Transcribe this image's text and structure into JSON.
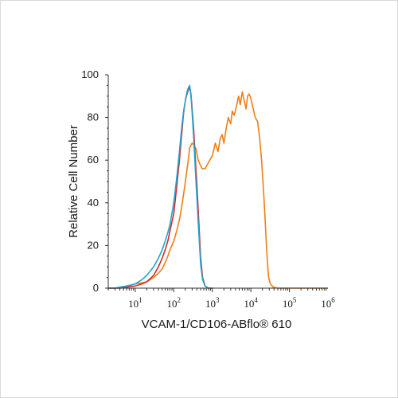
{
  "chart_data": {
    "type": "line",
    "title": "",
    "xlabel": "VCAM-1/CD106-ABflo® 610",
    "ylabel": "Relative Cell Number",
    "x_scale": "log",
    "xlim": [
      2,
      1000000
    ],
    "ylim": [
      0,
      100
    ],
    "y_ticks": [
      0,
      20,
      40,
      60,
      80,
      100
    ],
    "x_ticks": [
      {
        "value": 10,
        "base": "10",
        "exp": "1"
      },
      {
        "value": 100,
        "base": "10",
        "exp": "2"
      },
      {
        "value": 1000,
        "base": "10",
        "exp": "3"
      },
      {
        "value": 10000,
        "base": "10",
        "exp": "4"
      },
      {
        "value": 100000,
        "base": "10",
        "exp": "5"
      },
      {
        "value": 1000000,
        "base": "10",
        "exp": "6"
      }
    ],
    "grid": false,
    "legend": "none",
    "series": [
      {
        "color": "#f07f12",
        "points": [
          [
            2,
            0
          ],
          [
            3,
            0
          ],
          [
            4,
            0.5
          ],
          [
            5,
            0.5
          ],
          [
            6,
            1
          ],
          [
            8,
            1.5
          ],
          [
            10,
            2
          ],
          [
            15,
            2.5
          ],
          [
            20,
            3
          ],
          [
            30,
            5
          ],
          [
            40,
            7
          ],
          [
            50,
            9
          ],
          [
            60,
            12
          ],
          [
            70,
            15
          ],
          [
            80,
            18
          ],
          [
            100,
            22
          ],
          [
            120,
            27
          ],
          [
            140,
            32
          ],
          [
            160,
            38
          ],
          [
            180,
            44
          ],
          [
            200,
            50
          ],
          [
            230,
            58
          ],
          [
            260,
            66
          ],
          [
            300,
            68
          ],
          [
            340,
            67
          ],
          [
            380,
            65
          ],
          [
            430,
            60
          ],
          [
            480,
            58
          ],
          [
            550,
            56
          ],
          [
            650,
            56
          ],
          [
            800,
            59
          ],
          [
            1000,
            62
          ],
          [
            1200,
            68
          ],
          [
            1400,
            64
          ],
          [
            1600,
            70
          ],
          [
            1800,
            72
          ],
          [
            2000,
            68
          ],
          [
            2300,
            75
          ],
          [
            2600,
            80
          ],
          [
            3000,
            77
          ],
          [
            3300,
            83
          ],
          [
            3700,
            81
          ],
          [
            4200,
            85
          ],
          [
            4800,
            90
          ],
          [
            5300,
            86
          ],
          [
            6000,
            92
          ],
          [
            6700,
            88
          ],
          [
            7500,
            84
          ],
          [
            8200,
            90
          ],
          [
            9000,
            91
          ],
          [
            10000,
            89
          ],
          [
            11500,
            84
          ],
          [
            13000,
            80
          ],
          [
            15000,
            78
          ],
          [
            17000,
            70
          ],
          [
            19000,
            60
          ],
          [
            21000,
            48
          ],
          [
            23000,
            35
          ],
          [
            25000,
            22
          ],
          [
            27000,
            12
          ],
          [
            29000,
            5
          ],
          [
            32000,
            2
          ],
          [
            38000,
            0.5
          ],
          [
            50000,
            0
          ],
          [
            100000,
            0
          ],
          [
            1000000,
            0
          ]
        ]
      },
      {
        "color": "#d42a2a",
        "points": [
          [
            2,
            0
          ],
          [
            4,
            0
          ],
          [
            6,
            0.5
          ],
          [
            10,
            1
          ],
          [
            15,
            2
          ],
          [
            20,
            3
          ],
          [
            30,
            6
          ],
          [
            40,
            10
          ],
          [
            50,
            14
          ],
          [
            60,
            18
          ],
          [
            70,
            22
          ],
          [
            80,
            27
          ],
          [
            100,
            35
          ],
          [
            120,
            48
          ],
          [
            140,
            60
          ],
          [
            160,
            72
          ],
          [
            180,
            82
          ],
          [
            200,
            88
          ],
          [
            220,
            91
          ],
          [
            240,
            93
          ],
          [
            260,
            94
          ],
          [
            280,
            91
          ],
          [
            300,
            84
          ],
          [
            330,
            74
          ],
          [
            360,
            62
          ],
          [
            400,
            48
          ],
          [
            450,
            30
          ],
          [
            500,
            14
          ],
          [
            560,
            5
          ],
          [
            650,
            1
          ],
          [
            800,
            0
          ],
          [
            1000,
            0
          ]
        ]
      },
      {
        "color": "#20a6d2",
        "points": [
          [
            2,
            0
          ],
          [
            3,
            0
          ],
          [
            4,
            0.5
          ],
          [
            6,
            1
          ],
          [
            10,
            2
          ],
          [
            15,
            4
          ],
          [
            20,
            6
          ],
          [
            30,
            10
          ],
          [
            40,
            14
          ],
          [
            50,
            18
          ],
          [
            60,
            22
          ],
          [
            70,
            26
          ],
          [
            80,
            30
          ],
          [
            100,
            40
          ],
          [
            120,
            52
          ],
          [
            140,
            64
          ],
          [
            160,
            75
          ],
          [
            180,
            83
          ],
          [
            200,
            88
          ],
          [
            220,
            92
          ],
          [
            240,
            94
          ],
          [
            260,
            95
          ],
          [
            280,
            90
          ],
          [
            300,
            82
          ],
          [
            330,
            70
          ],
          [
            360,
            57
          ],
          [
            400,
            42
          ],
          [
            450,
            25
          ],
          [
            500,
            11
          ],
          [
            560,
            4
          ],
          [
            650,
            1
          ],
          [
            800,
            0
          ],
          [
            1000,
            0
          ]
        ]
      }
    ]
  }
}
